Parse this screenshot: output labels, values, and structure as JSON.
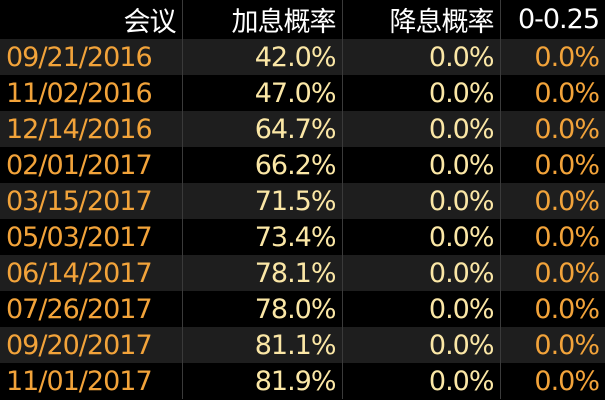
{
  "table": {
    "header": [
      "会议",
      "加息概率",
      "降息概率",
      "0-0.25"
    ],
    "rows": [
      [
        "09/21/2016",
        "42.0%",
        "0.0%",
        "0.0%"
      ],
      [
        "11/02/2016",
        "47.0%",
        "0.0%",
        "0.0%"
      ],
      [
        "12/14/2016",
        "64.7%",
        "0.0%",
        "0.0%"
      ],
      [
        "02/01/2017",
        "66.2%",
        "0.0%",
        "0.0%"
      ],
      [
        "03/15/2017",
        "71.5%",
        "0.0%",
        "0.0%"
      ],
      [
        "05/03/2017",
        "73.4%",
        "0.0%",
        "0.0%"
      ],
      [
        "06/14/2017",
        "78.1%",
        "0.0%",
        "0.0%"
      ],
      [
        "07/26/2017",
        "78.0%",
        "0.0%",
        "0.0%"
      ],
      [
        "09/20/2017",
        "81.1%",
        "0.0%",
        "0.0%"
      ],
      [
        "11/01/2017",
        "81.9%",
        "0.0%",
        "0.0%"
      ]
    ]
  }
}
